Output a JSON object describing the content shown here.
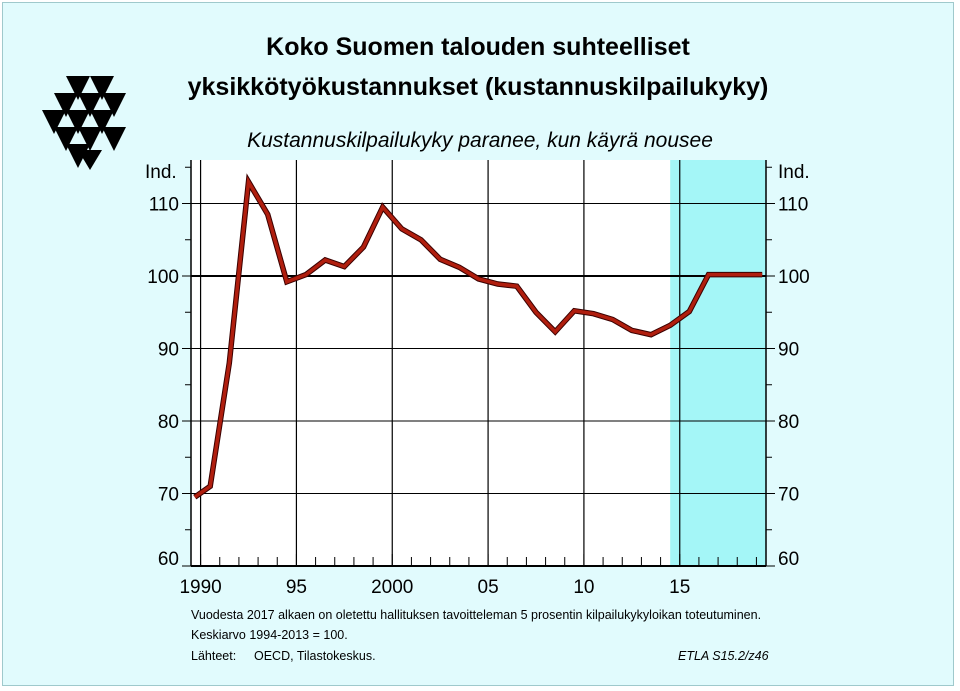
{
  "chart_data": {
    "type": "line",
    "title_line1": "Koko Suomen talouden suhteelliset",
    "title_line2": "yksikkötyökustannukset (kustannuskilpailukyky)",
    "subtitle": "Kustannuskilpailukyky paranee, kun käyrä nousee",
    "ylabel_left": "Ind.",
    "ylabel_right": "Ind.",
    "ylim": [
      60,
      116
    ],
    "xlim": [
      1989.5,
      2019.5
    ],
    "yticks": [
      60,
      70,
      80,
      90,
      100,
      110
    ],
    "ytick_labels": [
      "60",
      "70",
      "80",
      "90",
      "100",
      "110"
    ],
    "xtick_values": [
      1990,
      1995,
      2000,
      2005,
      2010,
      2015
    ],
    "xtick_labels": [
      "1990",
      "95",
      "2000",
      "05",
      "10",
      "15"
    ],
    "reference_line": 100,
    "forecast_shade": [
      2014.5,
      2019.5
    ],
    "series": [
      {
        "x": [
          1989.7,
          1990.5,
          1991.5,
          1992.5,
          1993.5,
          1994.5,
          1995.5,
          1996.5,
          1997.5,
          1998.5,
          1999.5,
          2000.5,
          2001.5,
          2002.5,
          2003.5,
          2004.5,
          2005.5,
          2006.5,
          2007.5,
          2008.5,
          2009.5,
          2010.5,
          2011.5,
          2012.5,
          2013.5,
          2014.5,
          2015.5,
          2016.5,
          2017.5,
          2018.5,
          2019.3
        ],
        "values": [
          69.5,
          71.0,
          88.0,
          113.0,
          108.5,
          99.2,
          100.2,
          102.2,
          101.3,
          104.0,
          109.5,
          106.5,
          105.0,
          102.3,
          101.2,
          99.6,
          98.9,
          98.6,
          95.0,
          92.3,
          95.2,
          94.8,
          94.0,
          92.5,
          91.9,
          93.2,
          95.1,
          100.2,
          100.2,
          100.2,
          100.2
        ],
        "color": "#b01e0e"
      }
    ],
    "notes": [
      "Vuodesta 2017 alkaen on oletettu hallituksen tavoitteleman 5 prosentin kilpailukykyloikan toteutuminen.",
      "Keskiarvo 1994-2013 = 100.",
      "Lähteet:",
      "OECD, Tilastokeskus."
    ],
    "code": "ETLA S15.2/z46"
  },
  "colors": {
    "background": "#e1fbfd",
    "plot_area": "#ffffff",
    "forecast": "#a4f6f7",
    "line": "#b01e0e",
    "line_outline": "#3a0000"
  },
  "logo_icon": "etla-triangles-logo"
}
